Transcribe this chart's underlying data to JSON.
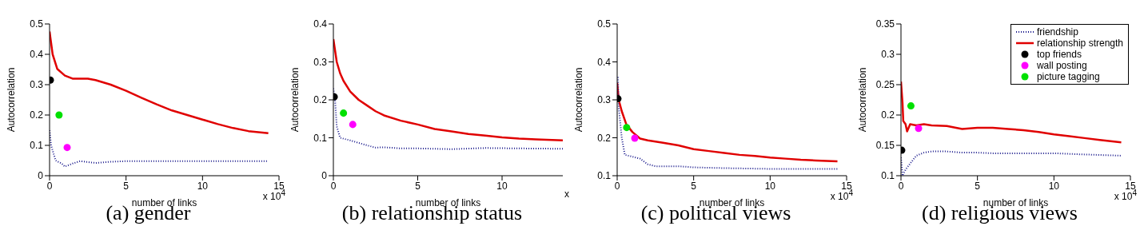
{
  "chart_data": [
    {
      "type": "line",
      "title": "(a)  gender",
      "xlabel": "number of links",
      "ylabel": "Autocorrelation",
      "annotations": [
        "x 10$^{4}$"
      ],
      "xlim": [
        0,
        15
      ],
      "xticks": [
        0,
        5,
        10,
        15
      ],
      "ylim": [
        0,
        0.5
      ],
      "yticks": [
        0,
        0.1,
        0.2,
        0.3,
        0.4,
        0.5
      ],
      "grid": false,
      "legend": false,
      "series": [
        {
          "color": "#1a1a8c",
          "line_style": "dotted",
          "marker": "none",
          "x": [
            0,
            0.1,
            0.4,
            0.8,
            1,
            1.5,
            2,
            2.5,
            3,
            4,
            5,
            6,
            8,
            10,
            12,
            14.3
          ],
          "values": [
            0.15,
            0.1,
            0.05,
            0.04,
            0.03,
            0.04,
            0.048,
            0.045,
            0.042,
            0.046,
            0.048,
            0.048,
            0.048,
            0.048,
            0.048,
            0.048
          ]
        },
        {
          "color": "#e00000",
          "line_style": "solid",
          "marker": "none",
          "x": [
            0,
            0.2,
            0.5,
            1,
            1.5,
            2,
            2.5,
            3,
            4,
            5,
            6,
            7,
            8,
            9,
            10,
            11,
            12,
            13,
            14.3
          ],
          "values": [
            0.475,
            0.4,
            0.352,
            0.33,
            0.32,
            0.32,
            0.32,
            0.315,
            0.3,
            0.28,
            0.257,
            0.235,
            0.215,
            0.2,
            0.185,
            0.17,
            0.157,
            0.147,
            0.14
          ]
        },
        {
          "type": "scatter",
          "color": "#000000",
          "marker": "circle",
          "x": [
            0.05
          ],
          "values": [
            0.315
          ]
        },
        {
          "type": "scatter",
          "color": "#ff00ff",
          "marker": "circle",
          "x": [
            1.15
          ],
          "values": [
            0.093
          ]
        },
        {
          "type": "scatter",
          "color": "#00e000",
          "marker": "circle",
          "x": [
            0.62
          ],
          "values": [
            0.2
          ]
        }
      ]
    },
    {
      "type": "line",
      "title": "(b)  relationship status",
      "xlabel": "number of links",
      "ylabel": "Autocorrelation",
      "annotations": [
        "x"
      ],
      "xlim": [
        0,
        13.6
      ],
      "xticks": [
        0,
        5,
        10
      ],
      "ylim": [
        0,
        0.4
      ],
      "yticks": [
        0,
        0.1,
        0.2,
        0.3,
        0.4
      ],
      "grid": false,
      "legend": false,
      "series": [
        {
          "color": "#1a1a8c",
          "line_style": "dotted",
          "marker": "none",
          "x": [
            0,
            0.1,
            0.2,
            0.4,
            1,
            2,
            2.5,
            3,
            4,
            5,
            7,
            9,
            11,
            13.6
          ],
          "values": [
            0.23,
            0.2,
            0.13,
            0.1,
            0.093,
            0.08,
            0.074,
            0.075,
            0.072,
            0.072,
            0.07,
            0.073,
            0.072,
            0.071
          ]
        },
        {
          "color": "#e00000",
          "line_style": "solid",
          "marker": "none",
          "x": [
            0,
            0.2,
            0.4,
            0.6,
            1,
            1.5,
            2,
            2.5,
            3,
            4,
            5,
            6,
            7,
            8,
            9,
            10,
            11,
            12,
            13.6
          ],
          "values": [
            0.36,
            0.3,
            0.27,
            0.25,
            0.222,
            0.2,
            0.185,
            0.17,
            0.159,
            0.145,
            0.135,
            0.123,
            0.117,
            0.11,
            0.106,
            0.101,
            0.098,
            0.096,
            0.093
          ]
        },
        {
          "type": "scatter",
          "color": "#000000",
          "marker": "circle",
          "x": [
            0.05
          ],
          "values": [
            0.208
          ]
        },
        {
          "type": "scatter",
          "color": "#ff00ff",
          "marker": "circle",
          "x": [
            1.15
          ],
          "values": [
            0.135
          ]
        },
        {
          "type": "scatter",
          "color": "#00e000",
          "marker": "circle",
          "x": [
            0.6
          ],
          "values": [
            0.165
          ]
        }
      ]
    },
    {
      "type": "line",
      "title": "(c)  political views",
      "xlabel": "number of links",
      "ylabel": "Autocorrelation",
      "annotations": [
        "x 10$^{4}$"
      ],
      "xlim": [
        0,
        15
      ],
      "xticks": [
        0,
        5,
        10,
        15
      ],
      "ylim": [
        0.1,
        0.5
      ],
      "yticks": [
        0.1,
        0.2,
        0.3,
        0.4,
        0.5
      ],
      "grid": false,
      "legend": false,
      "series": [
        {
          "color": "#1a1a8c",
          "line_style": "dotted",
          "marker": "none",
          "x": [
            0.05,
            0.1,
            0.3,
            0.5,
            1,
            1.5,
            2,
            2.5,
            4,
            5,
            7,
            10,
            14.4
          ],
          "values": [
            0.36,
            0.28,
            0.2,
            0.155,
            0.15,
            0.145,
            0.13,
            0.125,
            0.125,
            0.122,
            0.12,
            0.118,
            0.118
          ]
        },
        {
          "color": "#e00000",
          "line_style": "solid",
          "marker": "none",
          "x": [
            0,
            0.1,
            0.3,
            0.6,
            1,
            1.5,
            2,
            3,
            4,
            5,
            6,
            7,
            8,
            9,
            10,
            11,
            12,
            13,
            14.4
          ],
          "values": [
            0.345,
            0.3,
            0.27,
            0.235,
            0.215,
            0.198,
            0.193,
            0.187,
            0.18,
            0.17,
            0.165,
            0.16,
            0.155,
            0.152,
            0.148,
            0.145,
            0.142,
            0.14,
            0.138
          ]
        },
        {
          "type": "scatter",
          "color": "#000000",
          "marker": "circle",
          "x": [
            0.05
          ],
          "values": [
            0.303
          ]
        },
        {
          "type": "scatter",
          "color": "#ff00ff",
          "marker": "circle",
          "x": [
            1.15
          ],
          "values": [
            0.199
          ]
        },
        {
          "type": "scatter",
          "color": "#00e000",
          "marker": "circle",
          "x": [
            0.62
          ],
          "values": [
            0.227
          ]
        }
      ]
    },
    {
      "type": "line",
      "title": "(d)  religious views",
      "xlabel": "number of links",
      "ylabel": "Autocorrelation",
      "annotations": [
        "x 10$^{4}$"
      ],
      "xlim": [
        0,
        15
      ],
      "xticks": [
        0,
        5,
        10,
        15
      ],
      "ylim": [
        0.1,
        0.35
      ],
      "yticks": [
        0.1,
        0.15,
        0.2,
        0.25,
        0.3,
        0.35
      ],
      "grid": false,
      "legend": "top right",
      "series": [
        {
          "name": "friendship",
          "color": "#1a1a8c",
          "line_style": "dotted",
          "marker": "none",
          "x": [
            0,
            0.1,
            0.3,
            0.6,
            1,
            1.5,
            2,
            3,
            4,
            5,
            6,
            8,
            10,
            12,
            14.4
          ],
          "values": [
            0.13,
            0.1,
            0.11,
            0.12,
            0.133,
            0.138,
            0.14,
            0.14,
            0.138,
            0.138,
            0.137,
            0.137,
            0.137,
            0.135,
            0.133
          ]
        },
        {
          "name": "relationship strength",
          "color": "#e00000",
          "line_style": "solid",
          "marker": "none",
          "x": [
            0,
            0.1,
            0.15,
            0.3,
            0.4,
            0.6,
            1,
            1.5,
            2,
            3,
            4,
            5,
            6,
            7,
            8,
            9,
            10,
            11,
            12,
            13,
            14.4
          ],
          "values": [
            0.255,
            0.22,
            0.19,
            0.185,
            0.173,
            0.185,
            0.183,
            0.185,
            0.183,
            0.182,
            0.177,
            0.179,
            0.179,
            0.177,
            0.175,
            0.172,
            0.168,
            0.165,
            0.162,
            0.159,
            0.155
          ]
        },
        {
          "type": "scatter",
          "name": "top friends",
          "color": "#000000",
          "marker": "circle",
          "x": [
            0.05
          ],
          "values": [
            0.142
          ]
        },
        {
          "type": "scatter",
          "name": "wall posting",
          "color": "#ff00ff",
          "marker": "circle",
          "x": [
            1.15
          ],
          "values": [
            0.178
          ]
        },
        {
          "type": "scatter",
          "name": "picture tagging",
          "color": "#00e000",
          "marker": "circle",
          "x": [
            0.65
          ],
          "values": [
            0.215
          ]
        }
      ]
    }
  ]
}
